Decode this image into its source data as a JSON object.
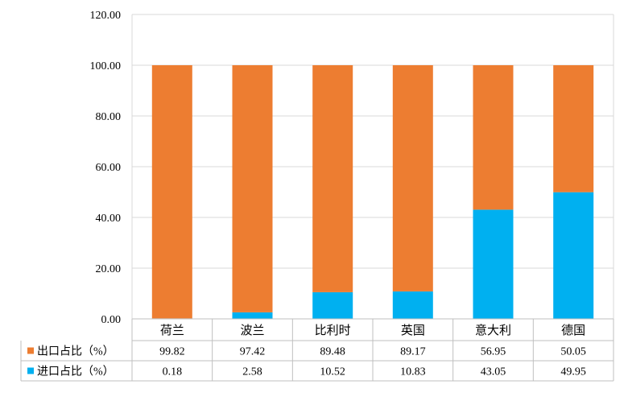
{
  "chart_data": {
    "type": "bar",
    "stacked": true,
    "categories": [
      "荷兰",
      "波兰",
      "比利时",
      "英国",
      "意大利",
      "德国"
    ],
    "series": [
      {
        "name": "进口占比（%）",
        "color": "#00B0F0",
        "values": [
          0.18,
          2.58,
          10.52,
          10.83,
          43.05,
          49.95
        ],
        "labels": [
          "0.18",
          "2.58",
          "10.52",
          "10.83",
          "43.05",
          "49.95"
        ]
      },
      {
        "name": "出口占比（%）",
        "color": "#ED7D31",
        "values": [
          99.82,
          97.42,
          89.48,
          89.17,
          56.95,
          50.05
        ],
        "labels": [
          "99.82",
          "97.42",
          "89.48",
          "89.17",
          "56.95",
          "50.05"
        ]
      }
    ],
    "table_rows": [
      1,
      0
    ],
    "ylim": [
      0,
      120
    ],
    "y_ticks": [
      "0.00",
      "20.00",
      "40.00",
      "60.00",
      "80.00",
      "100.00",
      "120.00"
    ],
    "grid": true,
    "legend": "data-table"
  }
}
